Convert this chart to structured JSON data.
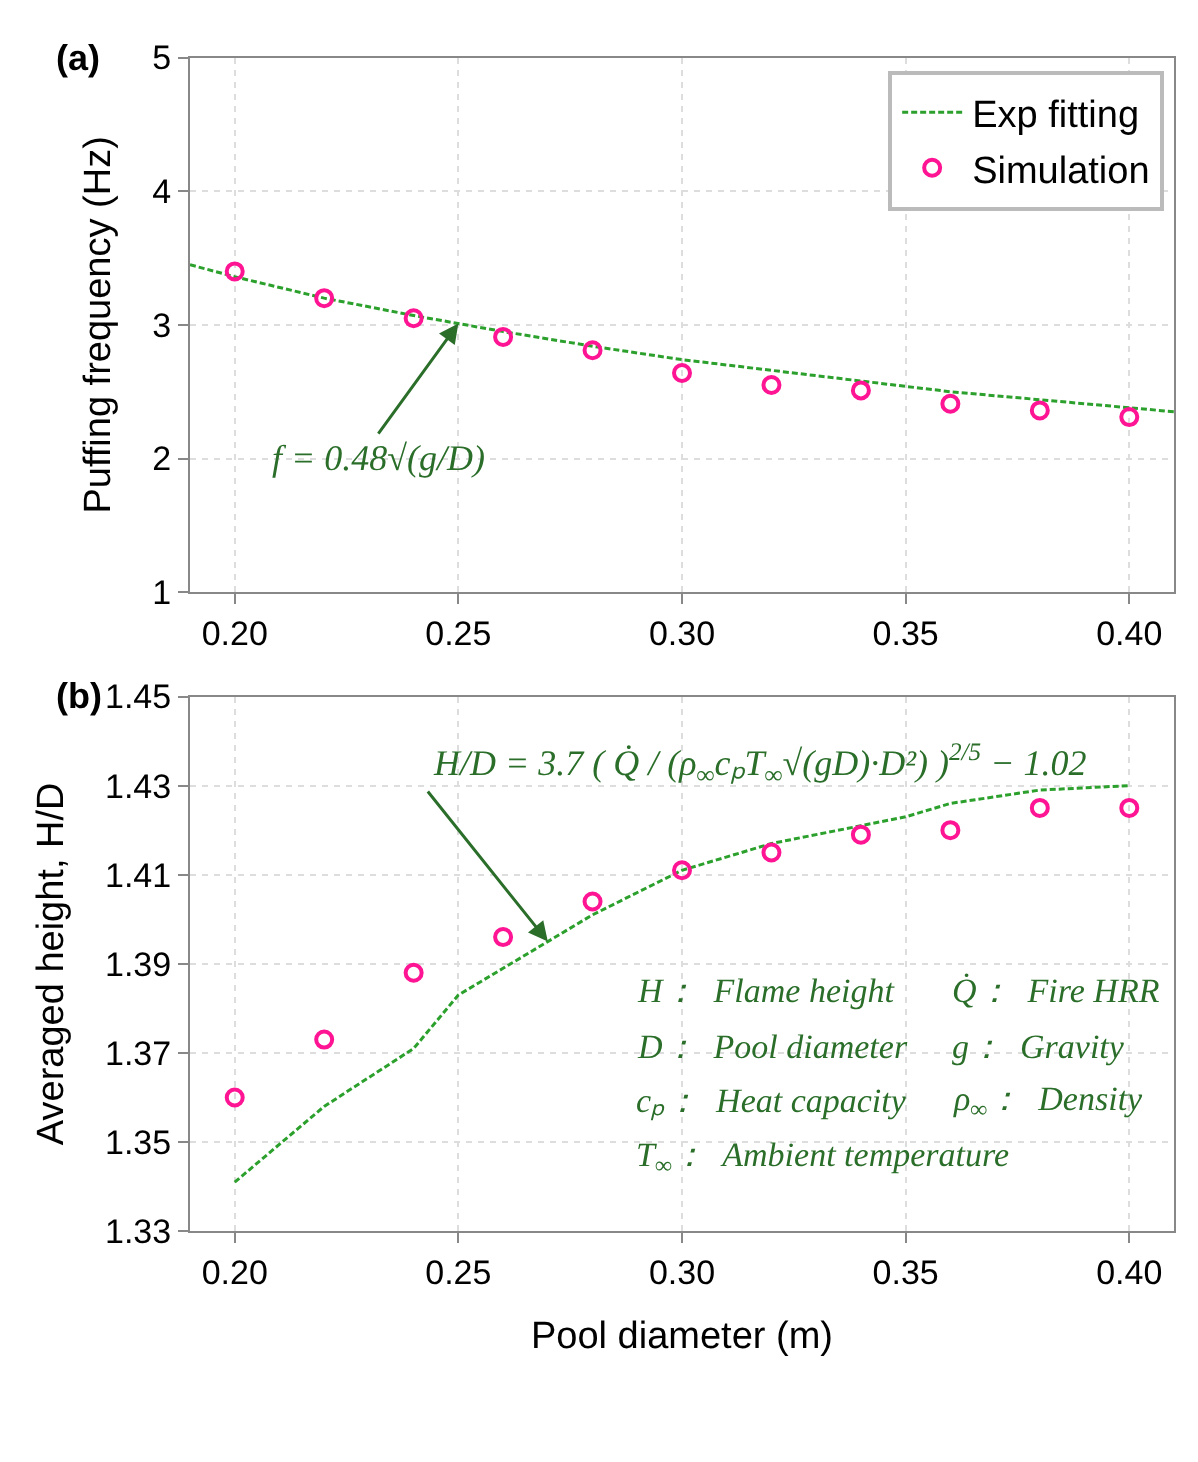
{
  "chart_data": [
    {
      "type": "scatter",
      "ylabel": "Puffing frequency (Hz)",
      "series": [
        {
          "name": "Exp fitting",
          "type": "line",
          "color": "#2ca02c",
          "line_style": "dashed",
          "marker": "none",
          "x": [
            0.19,
            0.2,
            0.22,
            0.24,
            0.26,
            0.28,
            0.3,
            0.32,
            0.34,
            0.36,
            0.38,
            0.4,
            0.41
          ],
          "values": [
            3.45,
            3.36,
            3.2,
            3.07,
            2.95,
            2.84,
            2.74,
            2.66,
            2.58,
            2.5,
            2.44,
            2.38,
            2.35
          ]
        },
        {
          "name": "Simulation",
          "color": "#ff1493",
          "marker": "circle",
          "x": [
            0.2,
            0.22,
            0.24,
            0.26,
            0.28,
            0.3,
            0.32,
            0.34,
            0.36,
            0.38,
            0.4
          ],
          "values": [
            3.4,
            3.2,
            3.05,
            2.91,
            2.81,
            2.64,
            2.55,
            2.51,
            2.41,
            2.36,
            2.31
          ]
        }
      ],
      "xlim": [
        0.19,
        0.41
      ],
      "xticks": [
        {
          "value": 0.2,
          "label": "0.20"
        },
        {
          "value": 0.25,
          "label": "0.25"
        },
        {
          "value": 0.3,
          "label": "0.30"
        },
        {
          "value": 0.35,
          "label": "0.35"
        },
        {
          "value": 0.4,
          "label": "0.40"
        }
      ],
      "ylim": [
        1,
        5
      ],
      "yticks": [
        1,
        2,
        3,
        4,
        5
      ],
      "grid": true,
      "legend": "top right",
      "annotations": [
        "(a)",
        {
          "text": "f = 0.48√(g/D)",
          "x": 0.25,
          "y": 3.01
        }
      ]
    },
    {
      "type": "scatter",
      "xlabel": "Pool diameter (m)",
      "ylabel": "Averaged height, H/D",
      "series": [
        {
          "type": "line",
          "color": "#2ca02c",
          "line_style": "dashed",
          "marker": "none",
          "x": [
            0.2,
            0.22,
            0.24,
            0.25,
            0.26,
            0.28,
            0.3,
            0.32,
            0.34,
            0.35,
            0.36,
            0.38,
            0.4
          ],
          "values": [
            1.341,
            1.358,
            1.371,
            1.383,
            1.389,
            1.401,
            1.411,
            1.417,
            1.421,
            1.423,
            1.426,
            1.429,
            1.43
          ]
        },
        {
          "color": "#ff1493",
          "marker": "circle",
          "x": [
            0.2,
            0.22,
            0.24,
            0.26,
            0.28,
            0.3,
            0.32,
            0.34,
            0.36,
            0.38,
            0.4
          ],
          "values": [
            1.36,
            1.373,
            1.388,
            1.396,
            1.404,
            1.411,
            1.415,
            1.419,
            1.42,
            1.425,
            1.425
          ]
        }
      ],
      "xlim": [
        0.19,
        0.41
      ],
      "xticks": [
        {
          "value": 0.2,
          "label": "0.20"
        },
        {
          "value": 0.25,
          "label": "0.25"
        },
        {
          "value": 0.3,
          "label": "0.30"
        },
        {
          "value": 0.35,
          "label": "0.35"
        },
        {
          "value": 0.4,
          "label": "0.40"
        }
      ],
      "ylim": [
        1.33,
        1.45
      ],
      "yticks": [
        1.33,
        1.35,
        1.37,
        1.39,
        1.41,
        1.43,
        1.45
      ],
      "grid": true,
      "legend": false,
      "annotations": [
        "(b)",
        {
          "text": "H/D = 3.7 ( Q̇ / (ρ$_{∞}$cₚT$_{∞}$√(gD)·D²) )$^{2/5}$ − 1.02",
          "x": 0.27,
          "y": 1.395
        },
        "H：  Flame height",
        "Q̇：  Fire HRR",
        "D：  Pool diameter",
        "g：  Gravity",
        "cₚ：  Heat capacity",
        "ρ$_{∞}$：  Density",
        "T$_{∞}$：  Ambient temperature"
      ]
    }
  ]
}
